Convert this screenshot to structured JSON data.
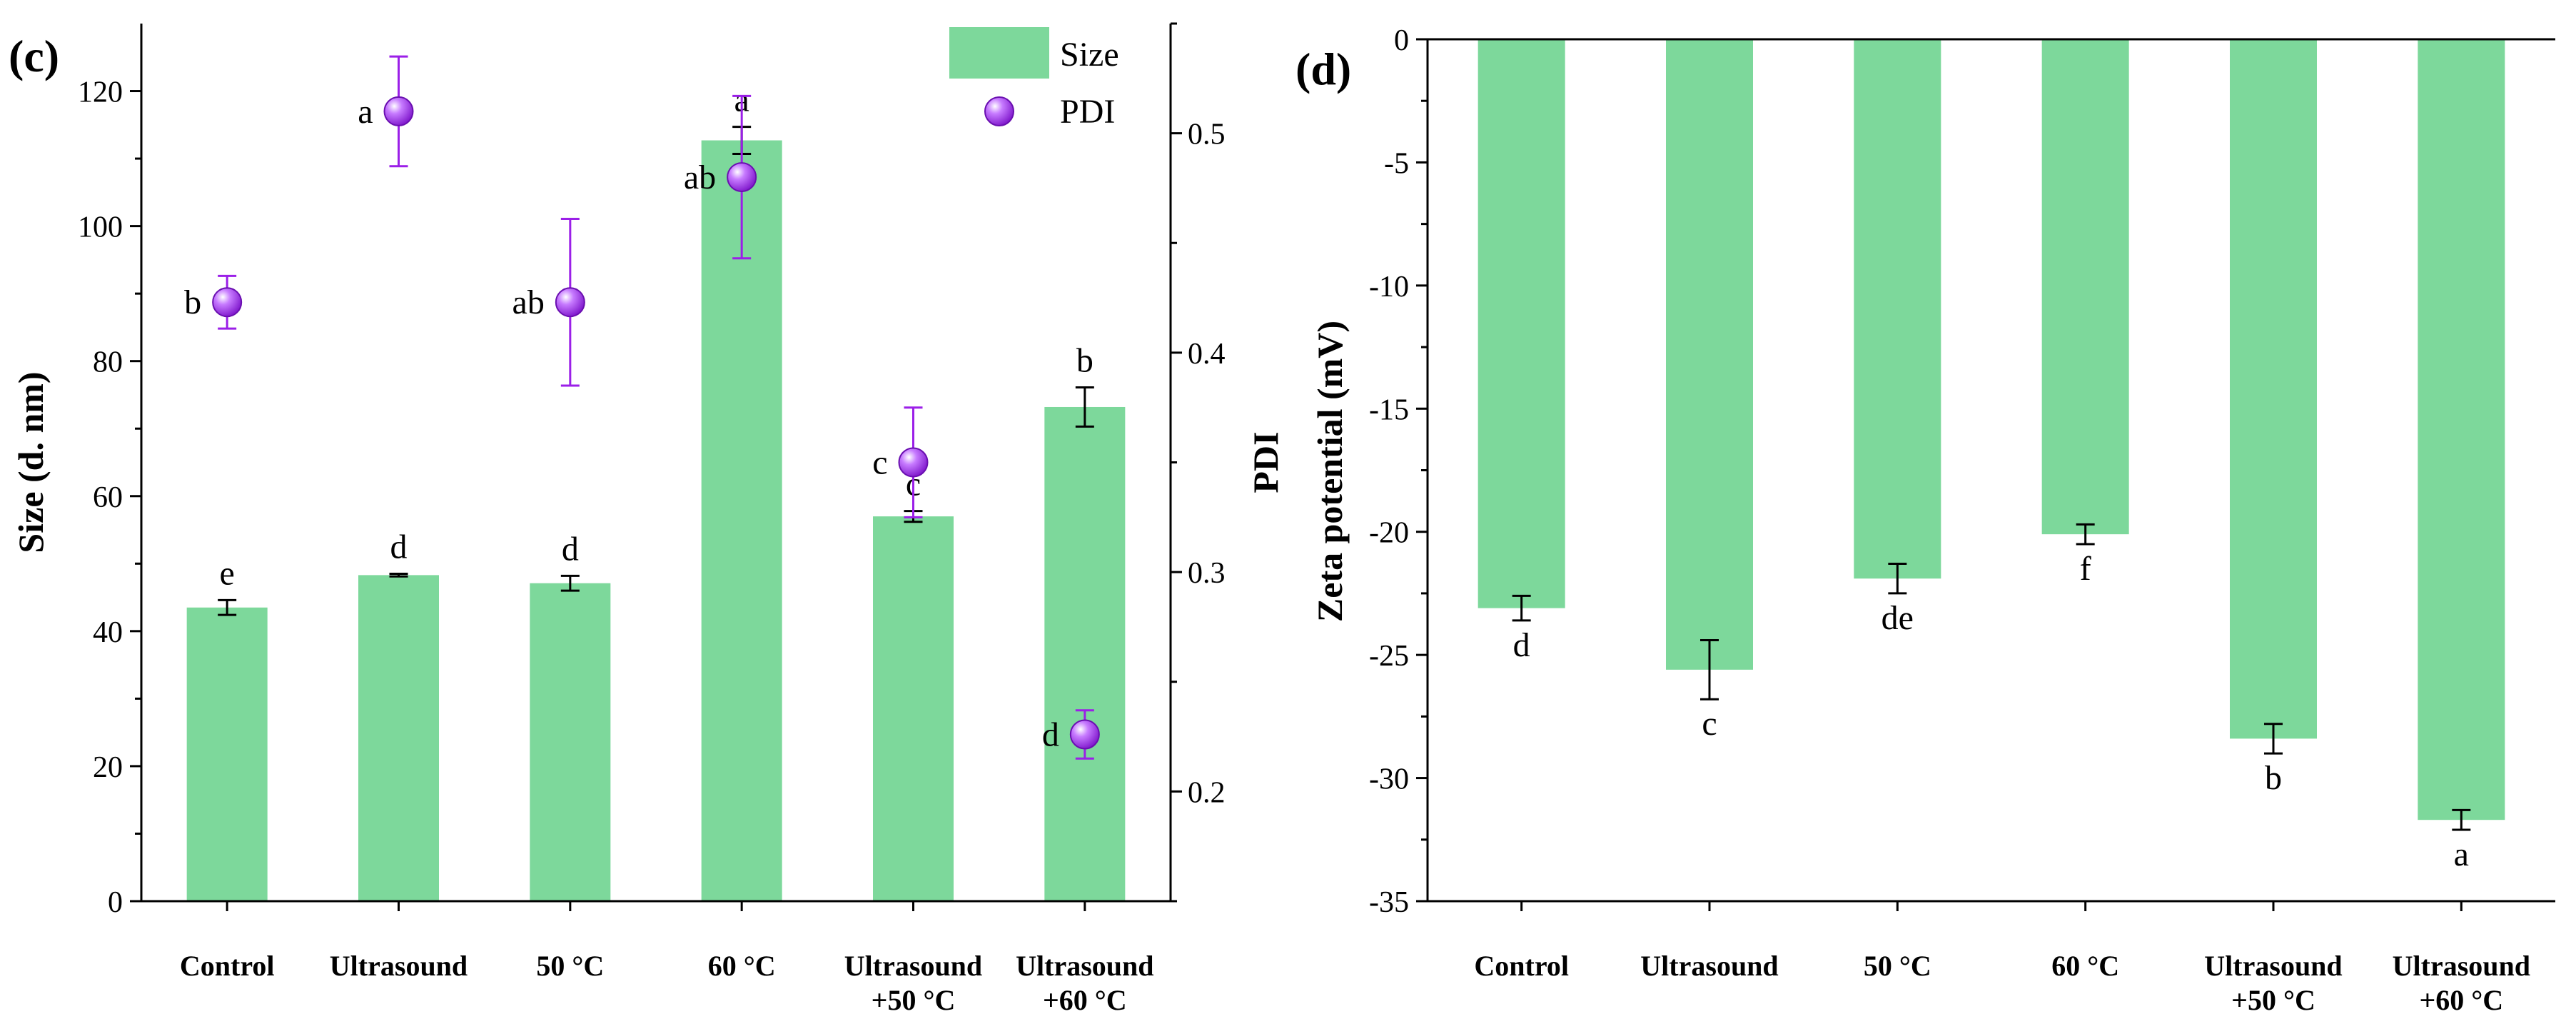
{
  "chart_data": [
    {
      "panel_label": "(c)",
      "type": "bar",
      "categories": [
        [
          "Control"
        ],
        [
          "Ultrasound"
        ],
        [
          "50 °C"
        ],
        [
          "60 °C"
        ],
        [
          "Ultrasound",
          "+50 °C"
        ],
        [
          "Ultrasound",
          "+60 °C"
        ]
      ],
      "ylabel": "Size (d. nm)",
      "ylim": [
        0,
        130
      ],
      "yticks": [
        0,
        20,
        40,
        60,
        80,
        100,
        120
      ],
      "y2label": "PDI",
      "y2lim": [
        0.15,
        0.55
      ],
      "y2ticks": [
        "0.2",
        "0.3",
        "0.4",
        "0.5"
      ],
      "legend": {
        "position": "top-right",
        "entries": [
          "Size",
          "PDI"
        ]
      },
      "colors": {
        "bar": "#7dd89b",
        "point": "#9b1fe8",
        "point_err": "#9b1fe8",
        "err": "#000000"
      },
      "series": [
        {
          "name": "Size",
          "kind": "bar",
          "values": [
            43.5,
            48.3,
            47.1,
            112.7,
            57.0,
            73.2
          ],
          "errors": [
            1.1,
            0.2,
            1.1,
            2.0,
            0.8,
            2.9
          ],
          "letters": [
            "e",
            "d",
            "d",
            "a",
            "c",
            "b"
          ]
        },
        {
          "name": "PDI",
          "kind": "scatter",
          "axis": "right",
          "values": [
            0.423,
            0.51,
            0.423,
            0.48,
            0.35,
            0.226
          ],
          "errors": [
            0.012,
            0.025,
            0.038,
            0.037,
            0.025,
            0.011
          ],
          "letters": [
            "b",
            "a",
            "ab",
            "ab",
            "c",
            "d"
          ]
        }
      ]
    },
    {
      "panel_label": "(d)",
      "type": "bar",
      "categories": [
        [
          "Control"
        ],
        [
          "Ultrasound"
        ],
        [
          "50 °C"
        ],
        [
          "60 °C"
        ],
        [
          "Ultrasound",
          "+50 °C"
        ],
        [
          "Ultrasound",
          "+60 °C"
        ]
      ],
      "ylabel": "Zeta potential (mV)",
      "ylim": [
        -35,
        0
      ],
      "yticks": [
        0,
        -5,
        -10,
        -15,
        -20,
        -25,
        -30,
        -35
      ],
      "colors": {
        "bar": "#7dd89b",
        "err": "#000000"
      },
      "series": [
        {
          "name": "Zeta potential",
          "kind": "bar",
          "values": [
            -23.1,
            -25.6,
            -21.9,
            -20.1,
            -28.4,
            -31.7
          ],
          "errors": [
            0.5,
            1.2,
            0.6,
            0.4,
            0.6,
            0.4
          ],
          "letters": [
            "d",
            "c",
            "de",
            "f",
            "b",
            "a"
          ]
        }
      ]
    }
  ]
}
